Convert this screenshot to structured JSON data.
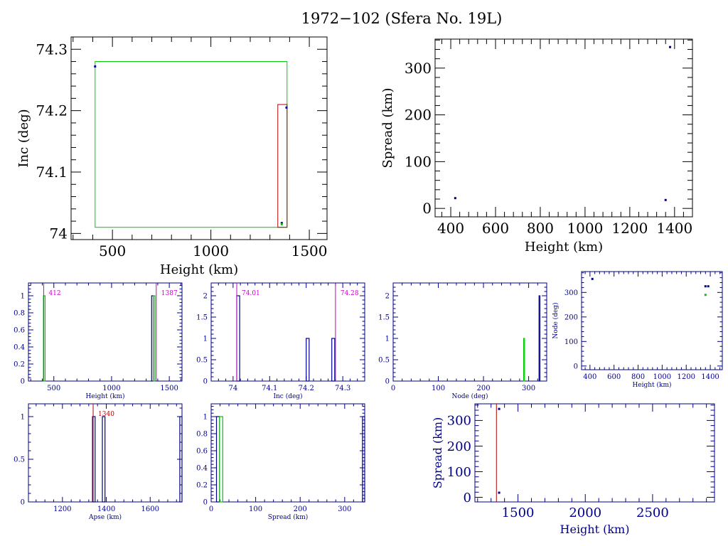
{
  "page": {
    "title": "1972−102 (Sfera No. 19L)"
  },
  "colors": {
    "black": "#000000",
    "navy": "#00008b",
    "green": "#00c800",
    "red": "#b00000",
    "magenta": "#c800c8"
  },
  "chart_data": [
    {
      "id": "inc-height",
      "type": "scatter",
      "xlabel": "Height (km)",
      "ylabel": "Inc (deg)",
      "xlim": [
        290,
        1590
      ],
      "ylim": [
        73.99,
        74.32
      ],
      "xticks": [
        500,
        1000,
        1500
      ],
      "yticks": [
        74,
        74.1,
        74.2,
        74.3
      ],
      "xticklabels": [
        "500",
        "1000",
        "1500"
      ],
      "yticklabels": [
        "74",
        "74.1",
        "74.2",
        "74.3"
      ],
      "points": [
        {
          "x": 412,
          "y": 74.272,
          "color": "navy"
        },
        {
          "x": 1384,
          "y": 74.205,
          "color": "navy"
        },
        {
          "x": 1360,
          "y": 74.017,
          "color": "navy"
        },
        {
          "x": 1360,
          "y": 74.015,
          "color": "green"
        }
      ],
      "boxes": [
        {
          "x": [
            412,
            1387
          ],
          "y": [
            74.01,
            74.28
          ],
          "color": "green"
        },
        {
          "x": [
            1340,
            1387
          ],
          "y": [
            74.01,
            74.21
          ],
          "color": "red"
        }
      ]
    },
    {
      "id": "spread-height",
      "type": "scatter",
      "xlabel": "Height (km)",
      "ylabel": "Spread (km)",
      "xlim": [
        330,
        1480
      ],
      "ylim": [
        -18,
        362
      ],
      "xticks": [
        400,
        600,
        800,
        1000,
        1200,
        1400
      ],
      "yticks": [
        0,
        100,
        200,
        300
      ],
      "xticklabels": [
        "400",
        "600",
        "800",
        "1000",
        "1200",
        "1400"
      ],
      "yticklabels": [
        "0",
        "100",
        "200",
        "300"
      ],
      "points": [
        {
          "x": 420,
          "y": 22,
          "color": "navy"
        },
        {
          "x": 1360,
          "y": 18,
          "color": "navy"
        },
        {
          "x": 1380,
          "y": 345,
          "color": "navy"
        }
      ]
    },
    {
      "id": "hist-height",
      "type": "bar",
      "xlabel": "Height (km)",
      "ylabel": "",
      "xlim": [
        280,
        1610
      ],
      "ylim": [
        0,
        1.15
      ],
      "xticks": [
        500,
        1000,
        1500
      ],
      "yticks": [
        0,
        0.2,
        0.4,
        0.6,
        0.8,
        1
      ],
      "xticklabels": [
        "500",
        "1000",
        "1500"
      ],
      "yticklabels": [
        "0",
        "0.2",
        "0.4",
        "0.6",
        "0.8",
        "1"
      ],
      "bars": [
        {
          "x0": 410,
          "x1": 424,
          "y": 1,
          "color": "green"
        },
        {
          "x0": 1347,
          "x1": 1361,
          "y": 1,
          "color": "navy"
        },
        {
          "x0": 1361,
          "x1": 1375,
          "y": 1,
          "color": "green"
        }
      ],
      "vlines": [
        {
          "x": 412,
          "color": "magenta",
          "label": "412"
        },
        {
          "x": 1387,
          "color": "magenta",
          "label": "1387"
        }
      ]
    },
    {
      "id": "hist-inc",
      "type": "bar",
      "xlabel": "Inc (deg)",
      "ylabel": "",
      "xlim": [
        73.94,
        74.36
      ],
      "ylim": [
        0,
        2.3
      ],
      "xticks": [
        74,
        74.1,
        74.2,
        74.3
      ],
      "yticks": [
        0,
        0.5,
        1,
        1.5,
        2
      ],
      "xticklabels": [
        "74",
        "74.1",
        "74.2",
        "74.3"
      ],
      "yticklabels": [
        "0",
        "0.5",
        "1",
        "1.5",
        "2"
      ],
      "bars": [
        {
          "x0": 74.01,
          "x1": 74.018,
          "y": 2,
          "color": "navy"
        },
        {
          "x0": 74.2,
          "x1": 74.208,
          "y": 1,
          "color": "navy"
        },
        {
          "x0": 74.27,
          "x1": 74.278,
          "y": 1,
          "color": "navy"
        }
      ],
      "vlines": [
        {
          "x": 74.01,
          "color": "magenta",
          "label": "74.01"
        },
        {
          "x": 74.28,
          "color": "magenta",
          "label": "74.28"
        }
      ]
    },
    {
      "id": "hist-node",
      "type": "bar",
      "xlabel": "Node (deg)",
      "ylabel": "",
      "xlim": [
        0,
        340
      ],
      "ylim": [
        0,
        2.3
      ],
      "xticks": [
        0,
        100,
        200,
        300
      ],
      "yticks": [
        0,
        0.5,
        1,
        1.5,
        2
      ],
      "xticklabels": [
        "0",
        "100",
        "200",
        "300"
      ],
      "yticklabels": [
        "0",
        "0.5",
        "1",
        "1.5",
        "2"
      ],
      "bars": [
        {
          "x0": 289,
          "x1": 291,
          "y": 1,
          "color": "green"
        },
        {
          "x0": 323,
          "x1": 325,
          "y": 2,
          "color": "navy"
        }
      ],
      "vlines": []
    },
    {
      "id": "node-height",
      "type": "scatter",
      "xlabel": "Height (km)",
      "ylabel": "Node (deg)",
      "xlim": [
        330,
        1500
      ],
      "ylim": [
        -15,
        385
      ],
      "xticks": [
        400,
        600,
        800,
        1000,
        1200,
        1400
      ],
      "yticks": [
        0,
        100,
        200,
        300
      ],
      "xticklabels": [
        "400",
        "600",
        "800",
        "1000",
        "1200",
        "1400"
      ],
      "yticklabels": [
        "0",
        "100",
        "200",
        "300"
      ],
      "points": [
        {
          "x": 420,
          "y": 355,
          "color": "navy"
        },
        {
          "x": 1360,
          "y": 325,
          "color": "navy"
        },
        {
          "x": 1383,
          "y": 325,
          "color": "navy"
        },
        {
          "x": 1360,
          "y": 290,
          "color": "green"
        }
      ]
    },
    {
      "id": "hist-apse",
      "type": "bar",
      "xlabel": "Apse (km)",
      "ylabel": "",
      "xlim": [
        1045,
        1745
      ],
      "ylim": [
        0,
        1.15
      ],
      "xticks": [
        1200,
        1400,
        1600
      ],
      "yticks": [
        0,
        0.5,
        1
      ],
      "xticklabels": [
        "1200",
        "1400",
        "1600"
      ],
      "yticklabels": [
        "0",
        "0.5",
        "1"
      ],
      "bars": [
        {
          "x0": 1337,
          "x1": 1349,
          "y": 1,
          "color": "navy"
        },
        {
          "x0": 1382,
          "x1": 1394,
          "y": 1,
          "color": "navy"
        },
        {
          "x0": 1735,
          "x1": 1747,
          "y": 1,
          "color": "navy"
        }
      ],
      "vlines": [
        {
          "x": 1340,
          "color": "red",
          "label": "1340"
        }
      ]
    },
    {
      "id": "hist-spread",
      "type": "bar",
      "xlabel": "Spread (km)",
      "ylabel": "",
      "xlim": [
        0,
        345
      ],
      "ylim": [
        0,
        1.15
      ],
      "xticks": [
        0,
        100,
        200,
        300
      ],
      "yticks": [
        0,
        0.2,
        0.4,
        0.6,
        0.8,
        1
      ],
      "xticklabels": [
        "0",
        "100",
        "200",
        "300"
      ],
      "yticklabels": [
        "0",
        "0.2",
        "0.4",
        "0.6",
        "0.8",
        "1"
      ],
      "bars": [
        {
          "x0": 12,
          "x1": 19,
          "y": 1,
          "color": "navy"
        },
        {
          "x0": 19,
          "x1": 26,
          "y": 1,
          "color": "green"
        },
        {
          "x0": 340,
          "x1": 347,
          "y": 1,
          "color": "navy"
        }
      ],
      "vlines": []
    },
    {
      "id": "spread-height-2",
      "type": "scatter",
      "xlabel": "Height (km)",
      "ylabel": "Spread (km)",
      "xlim": [
        1180,
        2960
      ],
      "ylim": [
        -18,
        365
      ],
      "xticks": [
        1500,
        2000,
        2500
      ],
      "yticks": [
        0,
        100,
        200,
        300
      ],
      "xticklabels": [
        "1500",
        "2000",
        "2500"
      ],
      "yticklabels": [
        "0",
        "100",
        "200",
        "300"
      ],
      "points": [
        {
          "x": 1360,
          "y": 345,
          "color": "navy"
        },
        {
          "x": 1360,
          "y": 18,
          "color": "navy"
        }
      ],
      "vlines": [
        {
          "x": 1340,
          "color": "red",
          "label": ""
        }
      ]
    }
  ]
}
